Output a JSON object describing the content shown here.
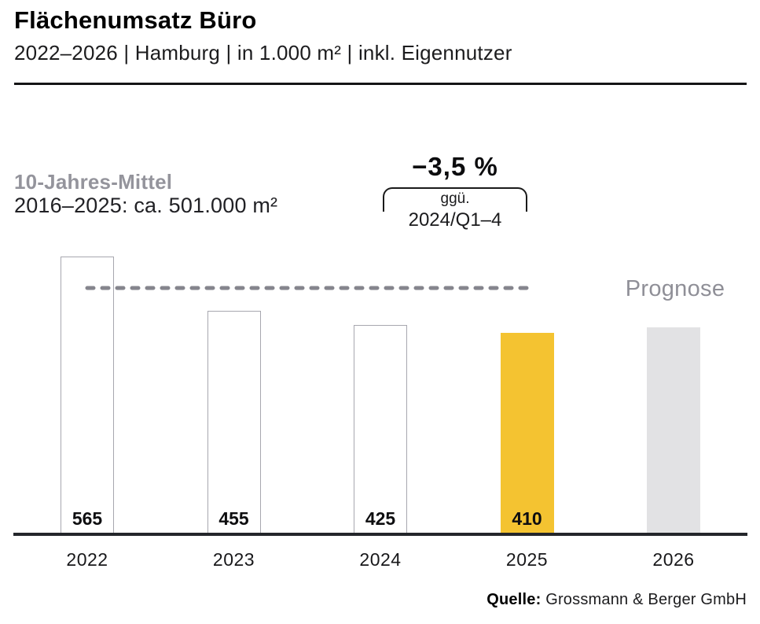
{
  "header": {
    "title": "Flächenumsatz Büro",
    "subtitle": "2022–2026 | Hamburg | in 1.000 m² | inkl. Eigennutzer"
  },
  "annotations": {
    "average_label": "10-Jahres-Mittel",
    "average_value": "2016–2025: ca. 501.000 m²",
    "change_percent": "−3,5 %",
    "change_ref_line1": "ggü.",
    "change_ref_line2": "2024/Q1–4",
    "prognose_label": "Prognose"
  },
  "footer": {
    "source_label": "Quelle:",
    "source_text": " Grossmann & Berger GmbH"
  },
  "colors": {
    "highlight": "#F4C331",
    "forecast": "#E2E2E4",
    "bar_outline": "#A7A7AF",
    "average_line": "#85858D",
    "axis": "#24262B",
    "muted_text": "#94949C"
  },
  "chart_data": {
    "type": "bar",
    "title": "Flächenumsatz Büro",
    "subtitle": "2022–2026 | Hamburg | in 1.000 m² | inkl. Eigennutzer",
    "unit": "1.000 m²",
    "categories": [
      "2022",
      "2023",
      "2024",
      "2025",
      "2026"
    ],
    "values": [
      565,
      455,
      425,
      410,
      420
    ],
    "value_labels": [
      "565",
      "455",
      "425",
      "410",
      ""
    ],
    "bar_styles": [
      "outline",
      "outline",
      "outline",
      "highlight",
      "forecast"
    ],
    "average_line_value": 501,
    "average_line_span_categories": [
      "2022",
      "2025"
    ],
    "ylim": [
      0,
      600
    ],
    "grid": false,
    "legend": "none",
    "note": "2026 is a forecast bar (Prognose) with no printed value; height read from chart ≈ 420. 2025 bar highlighted yellow."
  }
}
